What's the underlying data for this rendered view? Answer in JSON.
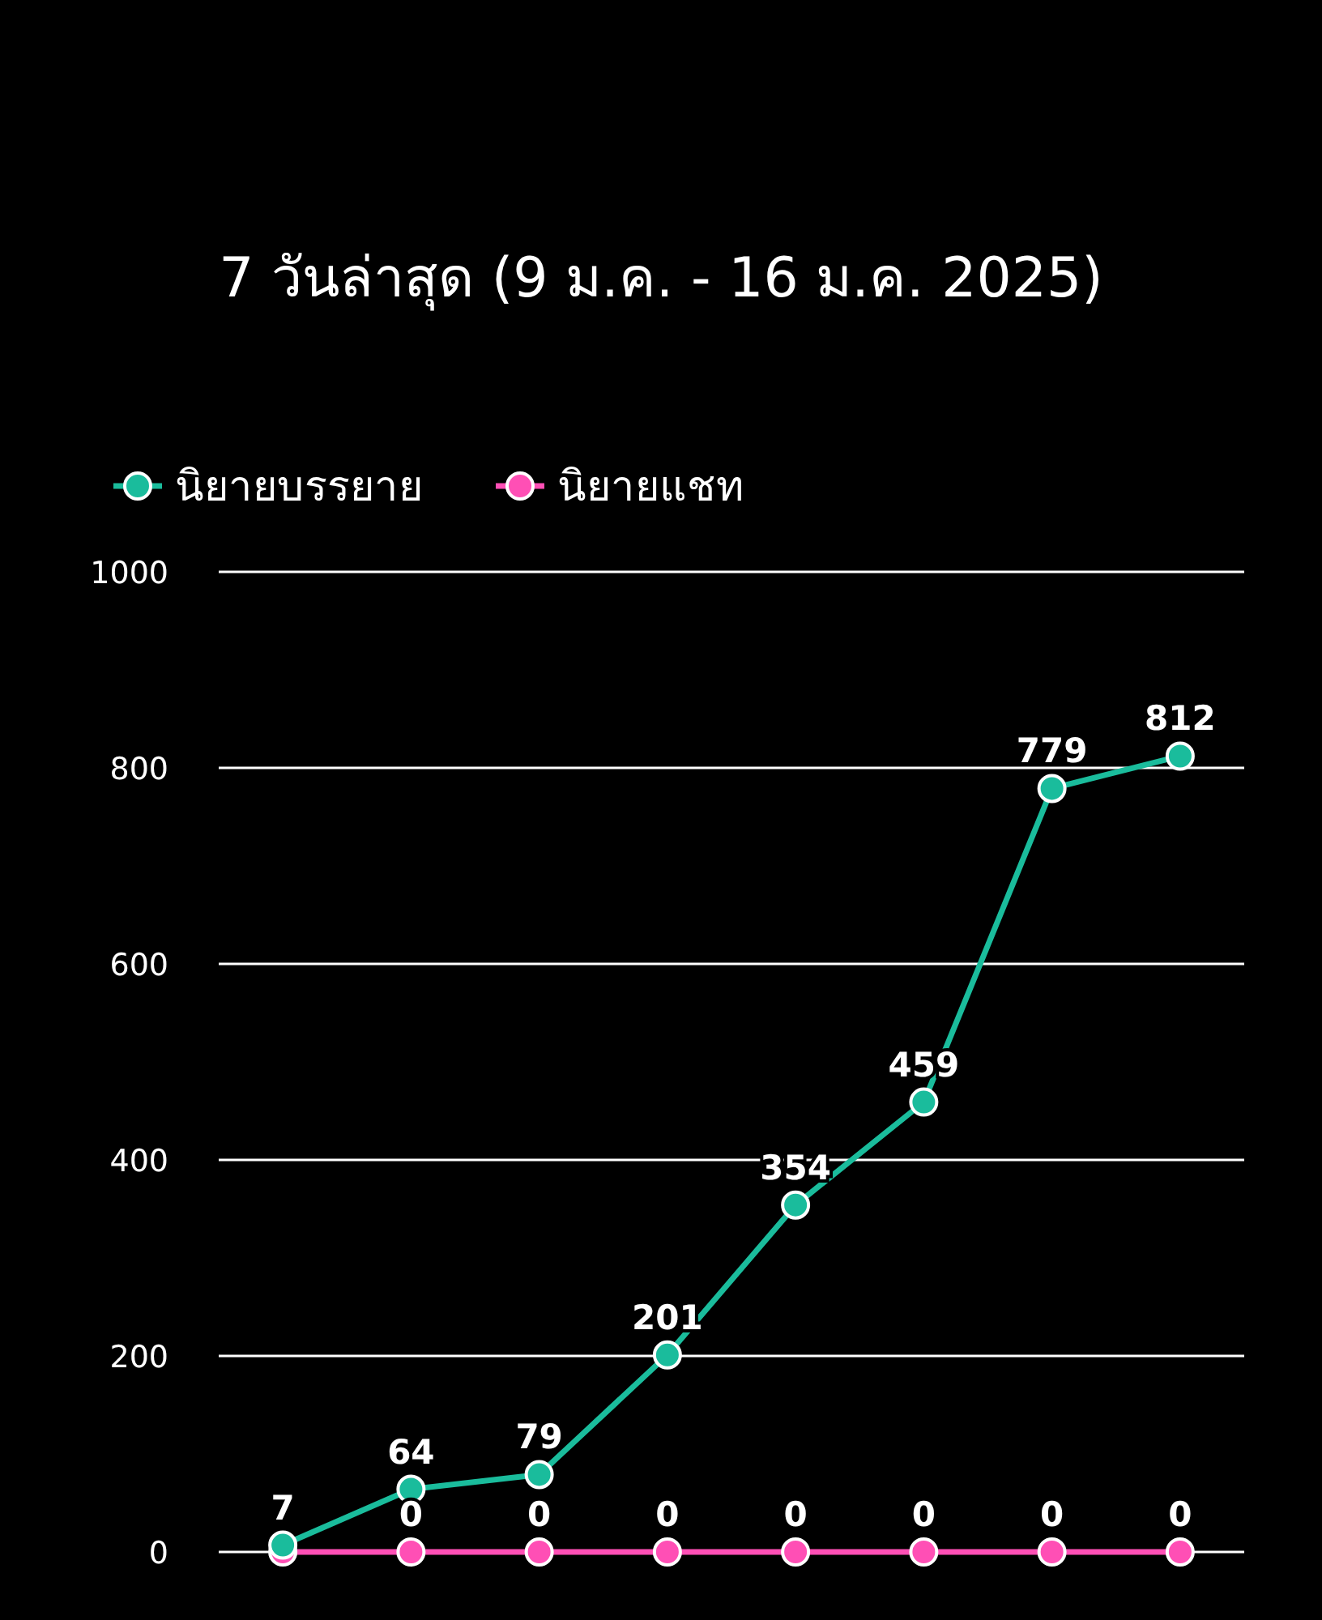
{
  "chart_data": {
    "type": "line",
    "title": "7 วันล่าสุด (9 ม.ค. - 16 ม.ค. 2025)",
    "categories": [
      null,
      null,
      null,
      null,
      null,
      null,
      null,
      null
    ],
    "series": [
      {
        "name": "นิยายบรรยาย",
        "color": "#1abc9c",
        "values": [
          7,
          64,
          79,
          201,
          354,
          459,
          779,
          812
        ],
        "value_labels": [
          "7",
          "64",
          "79",
          "201",
          "354",
          "459",
          "779",
          "812"
        ]
      },
      {
        "name": "นิยายแชท",
        "color": "#ff4fb5",
        "values": [
          0,
          0,
          0,
          0,
          0,
          0,
          0,
          0
        ],
        "value_labels": [
          null,
          "0",
          "0",
          "0",
          "0",
          "0",
          "0",
          "0"
        ]
      }
    ],
    "ylim": [
      0,
      1000
    ],
    "yticks": [
      0,
      200,
      400,
      600,
      800,
      1000
    ],
    "grid": "y",
    "legend": "top left",
    "marker": "circle",
    "line_style": "solid"
  }
}
